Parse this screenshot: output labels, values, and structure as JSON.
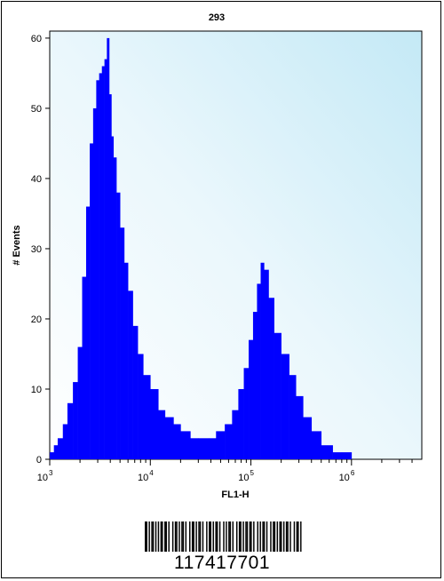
{
  "chart_data": {
    "type": "area",
    "title": "293",
    "xlabel": "FL1-H",
    "ylabel": "# Events",
    "x_scale": "log",
    "xlim": [
      1000,
      5000000
    ],
    "ylim": [
      0,
      61
    ],
    "x_ticks": [
      {
        "base": "10",
        "exp": "3"
      },
      {
        "base": "10",
        "exp": "4"
      },
      {
        "base": "10",
        "exp": "5"
      },
      {
        "base": "10",
        "exp": "6"
      }
    ],
    "y_ticks": [
      "0",
      "10",
      "20",
      "30",
      "40",
      "50",
      "60"
    ],
    "grid": false,
    "fill_color": "#0000ff",
    "series": [
      {
        "x": [
          1000,
          1100,
          1200,
          1350,
          1500,
          1700,
          1900,
          2100,
          2300,
          2500,
          2700,
          2900,
          3100,
          3300,
          3500,
          3700,
          3900,
          4100,
          4300,
          4600,
          5000,
          5500,
          6000,
          6700,
          7500,
          8500,
          10000,
          12000,
          14000,
          17000,
          20000,
          25000,
          30000,
          38000,
          45000,
          55000,
          65000,
          75000,
          85000,
          95000,
          105000,
          115000,
          125000,
          135000,
          150000,
          170000,
          200000,
          240000,
          280000,
          330000,
          400000,
          500000,
          650000,
          800000,
          1000000,
          1500000,
          2000000,
          3000000,
          4500000
        ],
        "y": [
          1,
          2,
          3,
          5,
          8,
          11,
          16,
          26,
          36,
          45,
          50,
          54,
          55,
          56,
          57,
          60,
          52,
          46,
          43,
          38,
          33,
          28,
          24,
          19,
          15,
          12,
          10,
          7,
          6,
          5,
          4,
          3,
          3,
          3,
          4,
          5,
          7,
          10,
          13,
          17,
          21,
          25,
          28,
          27,
          23,
          18,
          15,
          12,
          9,
          6,
          4,
          2,
          1,
          1,
          0,
          0,
          0,
          0,
          0
        ]
      }
    ]
  },
  "barcode": {
    "number": "117417701",
    "bars": "1101011010101101101001011010110100101101011010010110101101001010110100101101011011010010101101001011010110101101001011010"
  }
}
